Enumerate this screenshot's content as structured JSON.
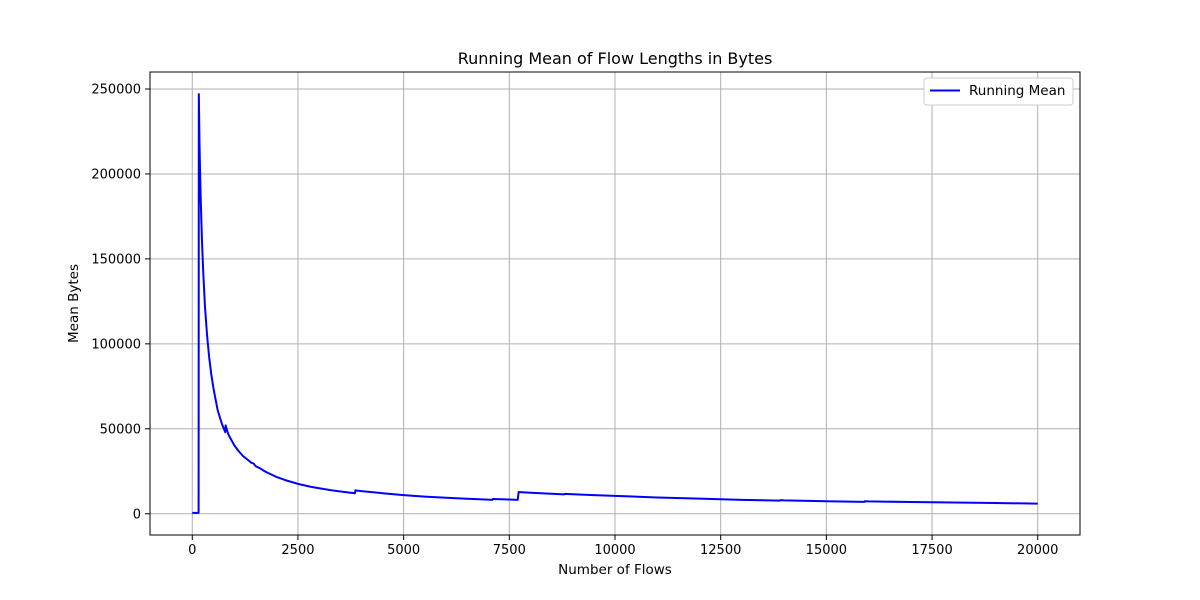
{
  "chart_data": {
    "type": "line",
    "title": "Running Mean of Flow Lengths in Bytes",
    "xlabel": "Number of Flows",
    "ylabel": "Mean Bytes",
    "xlim": [
      -1000,
      21000
    ],
    "ylim": [
      -12500,
      260000
    ],
    "xticks": [
      0,
      2500,
      5000,
      7500,
      10000,
      12500,
      15000,
      17500,
      20000
    ],
    "yticks": [
      0,
      50000,
      100000,
      150000,
      200000,
      250000
    ],
    "grid": true,
    "legend": {
      "position": "top-right"
    },
    "series": [
      {
        "name": "Running Mean",
        "color": "#0000ff",
        "x": [
          0,
          50,
          100,
          150,
          155,
          170,
          185,
          200,
          230,
          260,
          300,
          350,
          400,
          450,
          500,
          600,
          700,
          780,
          790,
          800,
          850,
          900,
          1000,
          1100,
          1200,
          1300,
          1400,
          1450,
          1500,
          1600,
          1700,
          1800,
          2000,
          2200,
          2500,
          2800,
          3000,
          3300,
          3600,
          3850,
          3860,
          3900,
          4000,
          4500,
          5000,
          5500,
          6000,
          6500,
          7000,
          7100,
          7110,
          7200,
          7500,
          7700,
          7720,
          7750,
          8000,
          8500,
          8800,
          8810,
          9000,
          9500,
          10000,
          11000,
          12000,
          13000,
          13900,
          13910,
          14000,
          15000,
          15900,
          15910,
          16000,
          17000,
          18000,
          19000,
          20000
        ],
        "y": [
          500,
          500,
          500,
          500,
          247000,
          220000,
          200000,
          185000,
          160000,
          142000,
          122000,
          105000,
          92000,
          82000,
          74000,
          61000,
          53000,
          48000,
          52000,
          51000,
          47000,
          44500,
          40000,
          36800,
          34000,
          32000,
          30000,
          29600,
          28000,
          26800,
          25200,
          23900,
          21600,
          19800,
          17600,
          15900,
          15000,
          13800,
          12800,
          12100,
          13800,
          13600,
          13300,
          12100,
          11000,
          10100,
          9400,
          8800,
          8300,
          8200,
          8700,
          8600,
          8400,
          8200,
          12800,
          12700,
          12400,
          11800,
          11400,
          11700,
          11500,
          11000,
          10500,
          9600,
          8900,
          8200,
          7700,
          8000,
          7900,
          7400,
          7000,
          7400,
          7300,
          6900,
          6600,
          6300,
          6000
        ]
      }
    ]
  }
}
